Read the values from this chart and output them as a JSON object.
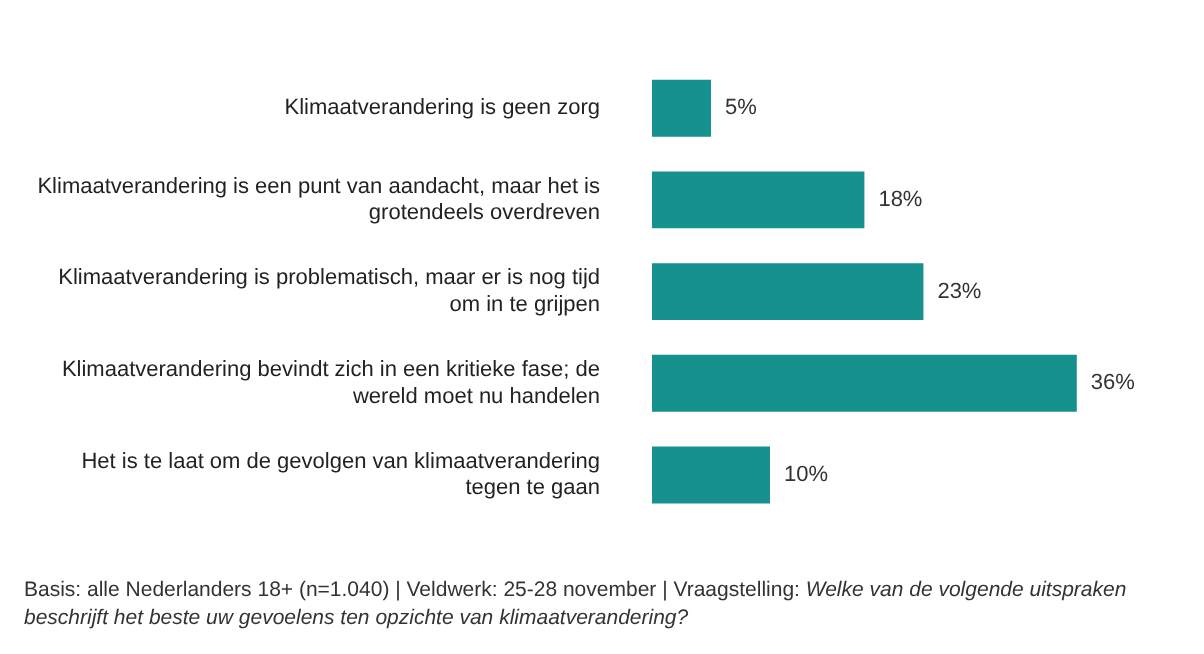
{
  "chart_data": {
    "type": "bar",
    "orientation": "horizontal",
    "categories": [
      "Klimaatverandering is geen zorg",
      "Klimaatverandering is een punt van aandacht, maar het is grotendeels overdreven",
      "Klimaatverandering is problematisch, maar er is nog tijd om in te grijpen",
      "Klimaatverandering bevindt zich in een kritieke fase; de wereld moet nu handelen",
      "Het is te laat om de gevolgen van klimaatverandering tegen te gaan"
    ],
    "values": [
      5,
      18,
      23,
      36,
      10
    ],
    "value_labels": [
      "5%",
      "18%",
      "23%",
      "36%",
      "10%"
    ],
    "color": "#17918d",
    "tick_labels": "y",
    "annotations": [
      "Basis: alle Nederlanders 18+ (n=1.040) | Veldwerk: 25-28 november | Vraagstelling:",
      "Welke van de volgende uitspraken beschrijft het beste uw gevoelens ten opzichte van klimaatverandering?"
    ]
  }
}
